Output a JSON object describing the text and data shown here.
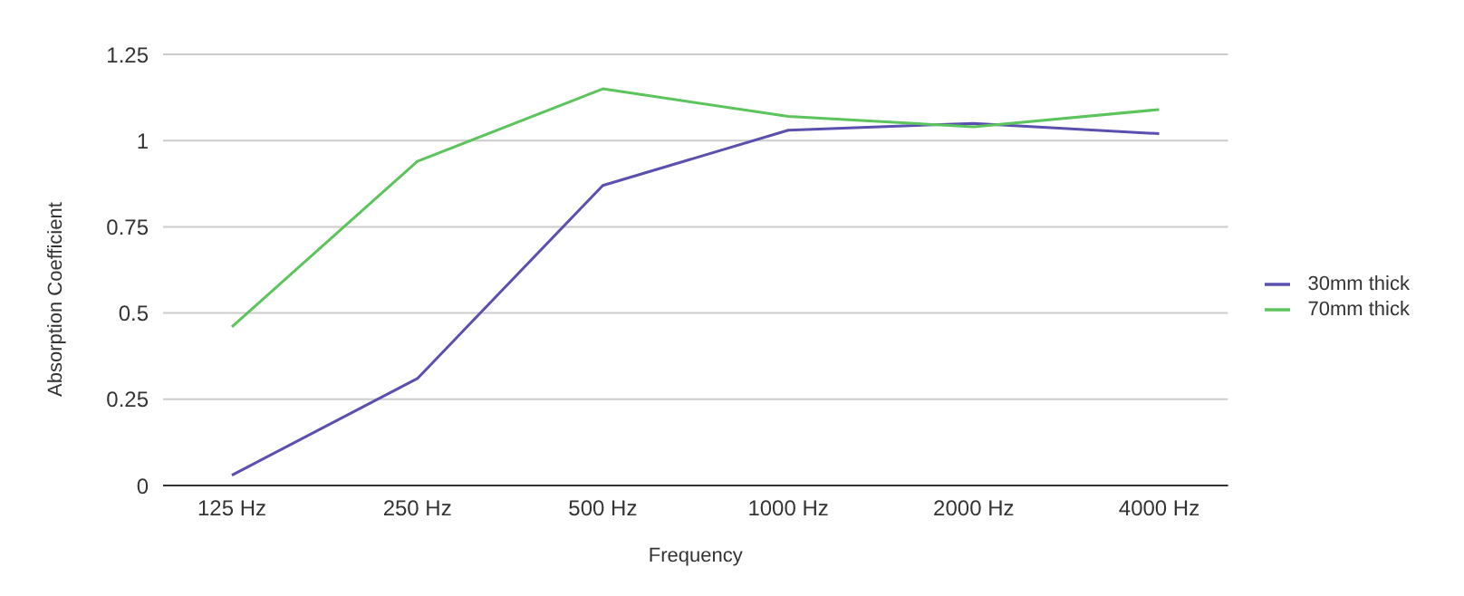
{
  "chart_data": {
    "type": "line",
    "xlabel": "Frequency",
    "ylabel": "Absorption Coefficient",
    "categories": [
      "125 Hz",
      "250 Hz",
      "500 Hz",
      "1000 Hz",
      "2000 Hz",
      "4000 Hz"
    ],
    "series": [
      {
        "name": "30mm thick",
        "color": "#5b4fb0",
        "values": [
          0.03,
          0.31,
          0.87,
          1.03,
          1.05,
          1.02
        ]
      },
      {
        "name": "70mm thick",
        "color": "#5cc45c",
        "values": [
          0.46,
          0.94,
          1.15,
          1.07,
          1.04,
          1.09
        ]
      }
    ],
    "ylim": [
      0,
      1.25
    ],
    "yticks": [
      0,
      0.25,
      0.5,
      0.75,
      1,
      1.25
    ],
    "grid": "y",
    "legend": "right",
    "marker": "none",
    "line_style": "solid"
  }
}
